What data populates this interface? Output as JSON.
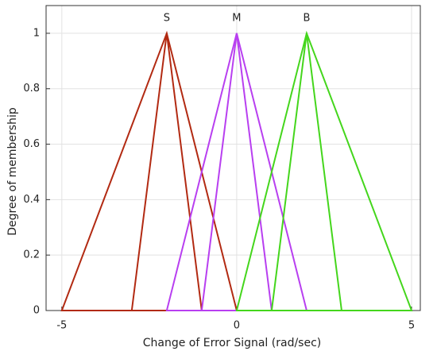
{
  "chart_data": {
    "type": "line",
    "xlabel": "Change of Error Signal (rad/sec)",
    "ylabel": "Degree of membership",
    "xlim": [
      -5.45,
      5.25
    ],
    "ylim": [
      0,
      1.1
    ],
    "xticks": [
      -5,
      0,
      5
    ],
    "yticks": [
      0,
      0.2,
      0.4,
      0.6,
      0.8,
      1
    ],
    "grid": true,
    "series": [
      {
        "name": "S",
        "color": "#b22a12",
        "triangles": [
          {
            "x": [
              -5,
              -2,
              0
            ],
            "y": [
              0,
              1,
              0
            ]
          },
          {
            "x": [
              -3,
              -2,
              -1
            ],
            "y": [
              0,
              1,
              0
            ]
          }
        ]
      },
      {
        "name": "M",
        "color": "#b83ff0",
        "triangles": [
          {
            "x": [
              -2,
              0,
              2
            ],
            "y": [
              0,
              1,
              0
            ]
          },
          {
            "x": [
              -1,
              0,
              1
            ],
            "y": [
              0,
              1,
              0
            ]
          }
        ]
      },
      {
        "name": "B",
        "color": "#44d61c",
        "triangles": [
          {
            "x": [
              0,
              2,
              5
            ],
            "y": [
              0,
              1,
              0
            ]
          },
          {
            "x": [
              1,
              2,
              3
            ],
            "y": [
              0,
              1,
              0
            ]
          }
        ]
      }
    ]
  }
}
